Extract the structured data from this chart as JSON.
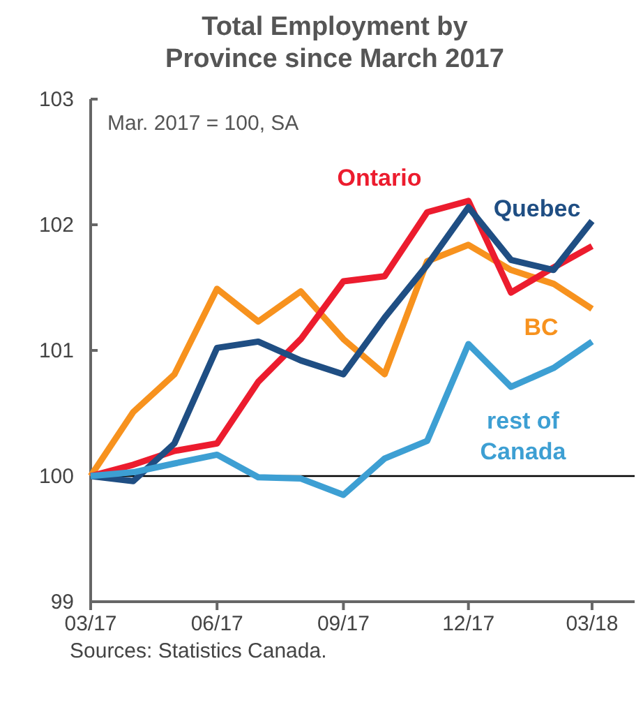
{
  "chart_data": {
    "type": "line",
    "title": "Total Employment by Province since March 2017",
    "x": [
      "2017-03",
      "2017-04",
      "2017-05",
      "2017-06",
      "2017-07",
      "2017-08",
      "2017-09",
      "2017-10",
      "2017-11",
      "2017-12",
      "2018-01",
      "2018-02",
      "2018-03"
    ],
    "xlim": [
      "2017-03",
      "2018-04"
    ],
    "xticks": [
      {
        "value": "2017-03",
        "label": "03/17"
      },
      {
        "value": "2017-06",
        "label": "06/17"
      },
      {
        "value": "2017-09",
        "label": "09/17"
      },
      {
        "value": "2017-12",
        "label": "12/17"
      },
      {
        "value": "2018-03",
        "label": "03/18"
      }
    ],
    "ylim": [
      99,
      103
    ],
    "yticks": [
      99,
      100,
      101,
      102,
      103
    ],
    "series": [
      {
        "name": "BC",
        "color": "#f7921e",
        "values": [
          100,
          100.51,
          100.81,
          101.49,
          101.23,
          101.47,
          101.09,
          100.81,
          101.71,
          101.84,
          101.64,
          101.53,
          101.33
        ]
      },
      {
        "name": "Ontario",
        "color": "#ec1c2e",
        "values": [
          100,
          100.09,
          100.2,
          100.26,
          100.75,
          101.09,
          101.55,
          101.59,
          102.1,
          102.19,
          101.46,
          101.66,
          101.83
        ]
      },
      {
        "name": "Quebec",
        "color": "#1f4e83",
        "values": [
          100,
          99.96,
          100.26,
          101.02,
          101.07,
          100.92,
          100.81,
          101.26,
          101.68,
          102.14,
          101.72,
          101.64,
          102.03
        ]
      },
      {
        "name": "rest of Canada",
        "color": "#3d9fd3",
        "values": [
          100,
          100.03,
          100.1,
          100.17,
          99.99,
          99.98,
          99.85,
          100.14,
          100.28,
          101.05,
          100.71,
          100.86,
          101.07
        ]
      }
    ],
    "ref_lines": [
      {
        "axis": "y",
        "value": 100,
        "color": "#000000"
      }
    ],
    "annotations": [
      "Mar. 2017 = 100, SA",
      "Sources: Statistics Canada."
    ],
    "legend": false,
    "grid": false,
    "marker": "none",
    "line_style": "solid"
  }
}
